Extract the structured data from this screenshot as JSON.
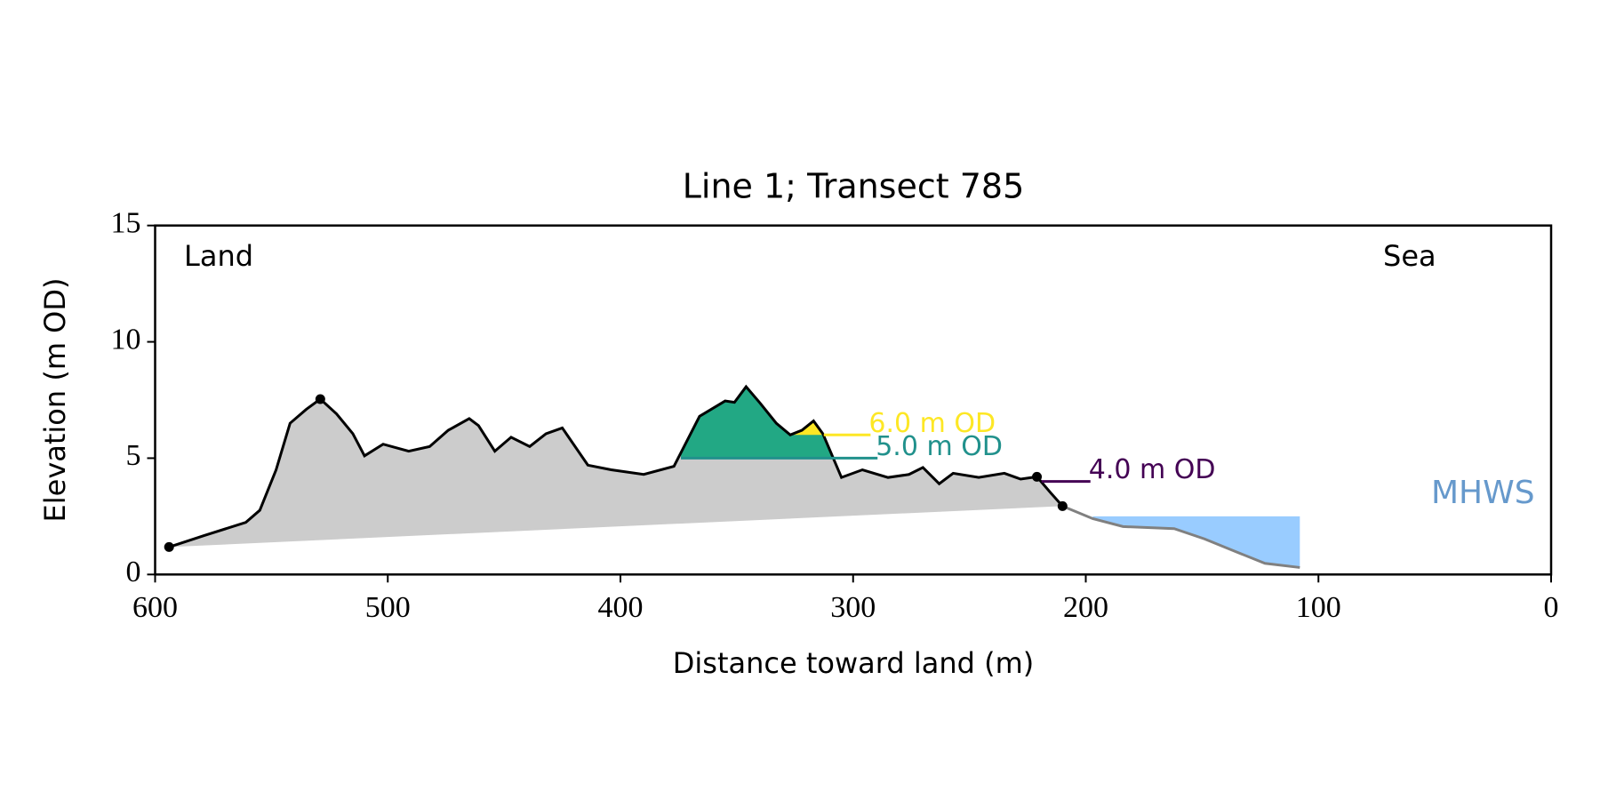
{
  "chart_data": {
    "type": "line",
    "title": "Line 1; Transect 785",
    "xlabel": "Distance toward land (m)",
    "ylabel": "Elevation (m OD)",
    "xlim": [
      600,
      0
    ],
    "ylim": [
      0,
      15
    ],
    "xticks": [
      600,
      500,
      400,
      300,
      200,
      100,
      0
    ],
    "yticks": [
      0,
      5,
      10,
      15
    ],
    "annotations": {
      "left": "Land",
      "right": "Sea"
    },
    "land_profile": {
      "color": "#000000",
      "fill": "#cccccc",
      "x": [
        594,
        579,
        561,
        555,
        548,
        542,
        535,
        529,
        522,
        515,
        510,
        502,
        491,
        482,
        474,
        465,
        461,
        454,
        447,
        439,
        432,
        425,
        414,
        404,
        390,
        377,
        366,
        355,
        351,
        346,
        340,
        333,
        327,
        322,
        317,
        313,
        305,
        296,
        285,
        276,
        270,
        263,
        257,
        246,
        235,
        228,
        221,
        215,
        210
      ],
      "y": [
        1.18,
        1.67,
        2.24,
        2.76,
        4.5,
        6.5,
        7.1,
        7.54,
        6.9,
        6.05,
        5.1,
        5.6,
        5.3,
        5.5,
        6.2,
        6.7,
        6.4,
        5.3,
        5.9,
        5.5,
        6.05,
        6.3,
        4.7,
        4.5,
        4.3,
        4.65,
        6.8,
        7.46,
        7.4,
        8.07,
        7.37,
        6.5,
        6.0,
        6.2,
        6.6,
        6.05,
        4.17,
        4.5,
        4.17,
        4.3,
        4.6,
        3.9,
        4.35,
        4.17,
        4.35,
        4.1,
        4.2,
        3.5,
        2.94
      ]
    },
    "sea_profile": {
      "color": "#808080",
      "x": [
        210,
        197,
        184,
        162,
        149,
        136,
        123,
        108
      ],
      "y": [
        2.94,
        2.4,
        2.06,
        1.97,
        1.53,
        1.0,
        0.48,
        0.3
      ]
    },
    "markers": {
      "color": "#000000",
      "x": [
        594,
        529,
        221,
        210
      ],
      "y": [
        1.18,
        7.54,
        4.2,
        2.94
      ]
    },
    "levels": [
      {
        "label": "4.0 m OD",
        "value": 4,
        "color": "#440154",
        "line_x": [
          219,
          198
        ]
      },
      {
        "label": "5.0 m OD",
        "value": 5,
        "color": "#21918c",
        "fill": "#22a884",
        "line_x": [
          374,
          289.5
        ],
        "fill_x": [
          374,
          305
        ]
      },
      {
        "label": "6.0 m OD",
        "value": 6,
        "color": "#fde725",
        "fill": "#fde725",
        "line_x": [
          312.6,
          292.5
        ],
        "fill_x": [
          327,
          313
        ]
      }
    ],
    "mhws": {
      "label": "MHWS",
      "value": 2.5,
      "color": "#99ccff",
      "label_color": "#6699cc",
      "x": [
        197,
        108
      ]
    }
  }
}
